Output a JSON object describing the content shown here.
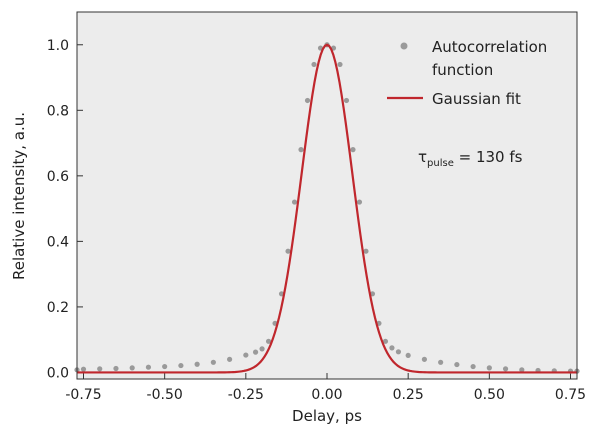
{
  "chart_data": {
    "type": "line",
    "title": "",
    "xlabel": "Delay, ps",
    "ylabel": "Relative intensity, a.u.",
    "xlim": [
      -0.77,
      0.77
    ],
    "ylim": [
      -0.02,
      1.1
    ],
    "x_ticks": [
      -0.75,
      -0.5,
      -0.25,
      0.0,
      0.25,
      0.5,
      0.75
    ],
    "x_tick_labels": [
      "-0.75",
      "-0.50",
      "-0.25",
      "0.00",
      "0.25",
      "0.50",
      "0.75"
    ],
    "y_ticks": [
      0.0,
      0.2,
      0.4,
      0.6,
      0.8,
      1.0
    ],
    "y_tick_labels": [
      "0.0",
      "0.2",
      "0.4",
      "0.6",
      "0.8",
      "1.0"
    ],
    "grid": false,
    "legend_position": "top-right",
    "plot_background": "#ececec",
    "series": [
      {
        "name": "Autocorrelation function",
        "kind": "scatter",
        "color": "#9a9a9a",
        "x": [
          -0.77,
          -0.75,
          -0.7,
          -0.65,
          -0.6,
          -0.55,
          -0.5,
          -0.45,
          -0.4,
          -0.35,
          -0.3,
          -0.25,
          -0.22,
          -0.2,
          -0.18,
          -0.16,
          -0.14,
          -0.12,
          -0.1,
          -0.08,
          -0.06,
          -0.04,
          -0.02,
          0.0,
          0.02,
          0.04,
          0.06,
          0.08,
          0.1,
          0.12,
          0.14,
          0.16,
          0.18,
          0.2,
          0.22,
          0.25,
          0.3,
          0.35,
          0.4,
          0.45,
          0.5,
          0.55,
          0.6,
          0.65,
          0.7,
          0.75,
          0.77
        ],
        "y": [
          0.008,
          0.01,
          0.011,
          0.012,
          0.014,
          0.016,
          0.018,
          0.021,
          0.025,
          0.031,
          0.04,
          0.053,
          0.062,
          0.072,
          0.095,
          0.15,
          0.24,
          0.37,
          0.52,
          0.68,
          0.83,
          0.94,
          0.99,
          1.0,
          0.99,
          0.94,
          0.83,
          0.68,
          0.52,
          0.37,
          0.24,
          0.15,
          0.095,
          0.075,
          0.063,
          0.052,
          0.04,
          0.031,
          0.024,
          0.018,
          0.014,
          0.011,
          0.008,
          0.006,
          0.005,
          0.004,
          0.004
        ]
      },
      {
        "name": "Gaussian fit",
        "kind": "line",
        "color": "#c0272d",
        "function": "gaussian",
        "amplitude": 1.0,
        "center": 0.0,
        "fwhm": 0.184
      }
    ],
    "annotations": [
      {
        "symbol": "τ",
        "subscript": "pulse",
        "text": " = 130 fs"
      }
    ]
  }
}
